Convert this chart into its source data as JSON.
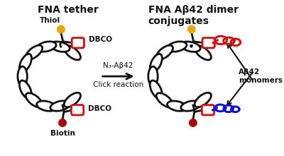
{
  "title_left": "FNA tether",
  "title_right": "FNA Aβ42 dimer\nconjugates",
  "arrow_label_top": "N₃-Aβ42",
  "arrow_label_bot": "Click reaction",
  "label_thiol": "Thiol",
  "label_dbco_top": "DBCO",
  "label_dbco_bot": "DBCO",
  "label_biotin": "Biotin",
  "label_abeta": "Aβ42\nmonomers",
  "bg_color": "#ffffff",
  "black": "#111111",
  "red": "#cc1111",
  "gold": "#e8a800",
  "dark_red": "#aa0000",
  "blue": "#1111cc",
  "lw_coil": 2.0,
  "lw_line": 1.8,
  "fontsize_title": 10,
  "fontsize_label": 7.5
}
